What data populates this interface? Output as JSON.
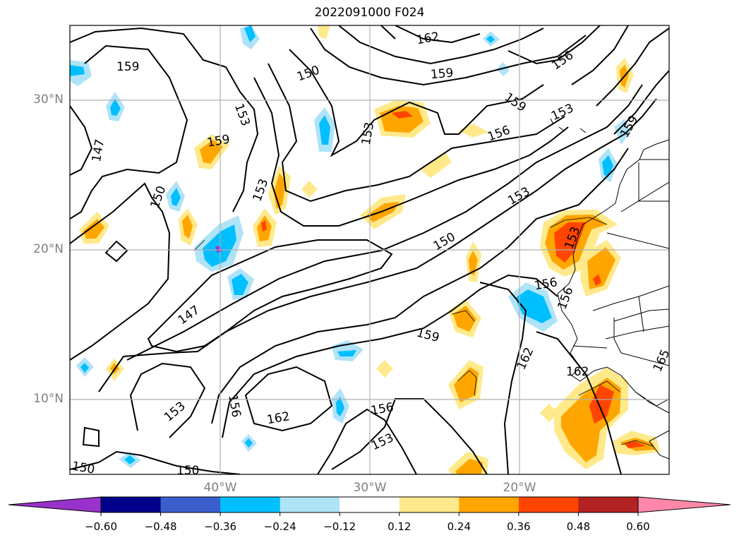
{
  "title": "2022091000 F024",
  "lat_labels": [
    "30°N",
    "20°N",
    "10°N"
  ],
  "lon_labels": [
    "40°W",
    "30°W",
    "20°W"
  ],
  "contour_labels": [
    "159",
    "162",
    "150",
    "156",
    "159",
    "153",
    "156",
    "159",
    "147",
    "150",
    "153",
    "159",
    "153",
    "150",
    "153",
    "147",
    "156",
    "159",
    "156",
    "156",
    "153",
    "162",
    "156",
    "153",
    "150",
    "150",
    "162",
    "165",
    "153",
    "159"
  ],
  "colorbar": {
    "ticks": [
      "−0.60",
      "−0.48",
      "−0.36",
      "−0.24",
      "−0.12",
      "0.12",
      "0.24",
      "0.36",
      "0.48",
      "0.60"
    ],
    "colors": [
      "#9932cc",
      "#00008b",
      "#3a5fcd",
      "#00bfff",
      "#afe3f8",
      "#ffffff",
      "#ffe98a",
      "#ffa500",
      "#ff4500",
      "#b22222",
      "#ff88aa"
    ]
  },
  "fill_colors": {
    "light_orange": "#ffe98a",
    "orange": "#ffa500",
    "red_orange": "#ff4500",
    "light_blue": "#afe3f8",
    "blue": "#00bfff",
    "purple": "#9932cc"
  }
}
